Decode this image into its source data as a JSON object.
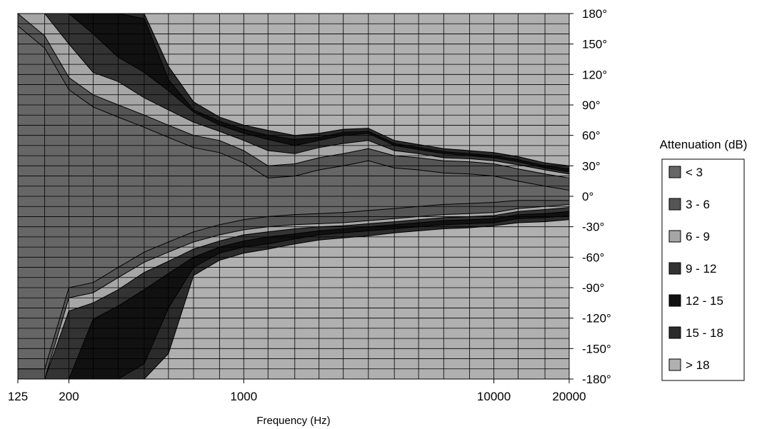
{
  "chart_data": {
    "type": "contour",
    "xlabel": "Frequency (Hz)",
    "x_scale": "log",
    "xlim": [
      125,
      20000
    ],
    "x_tick_labels": [
      {
        "value": 125,
        "label": "125"
      },
      {
        "value": 200,
        "label": "200"
      },
      {
        "value": 1000,
        "label": "1000"
      },
      {
        "value": 10000,
        "label": "10000"
      },
      {
        "value": 20000,
        "label": "20000"
      }
    ],
    "x_gridlines": [
      125,
      160,
      200,
      250,
      315,
      400,
      500,
      630,
      800,
      1000,
      1250,
      1600,
      2000,
      2500,
      3150,
      4000,
      5000,
      6300,
      8000,
      10000,
      12500,
      16000,
      20000
    ],
    "ylim": [
      -180,
      180
    ],
    "y_tick_labels": [
      {
        "value": 180,
        "label": "180°"
      },
      {
        "value": 150,
        "label": "150°"
      },
      {
        "value": 120,
        "label": "120°"
      },
      {
        "value": 90,
        "label": "90°"
      },
      {
        "value": 60,
        "label": "60°"
      },
      {
        "value": 30,
        "label": "30°"
      },
      {
        "value": 0,
        "label": "0°"
      },
      {
        "value": -30,
        "label": "-30°"
      },
      {
        "value": -60,
        "label": "-60°"
      },
      {
        "value": -90,
        "label": "-90°"
      },
      {
        "value": -120,
        "label": "-120°"
      },
      {
        "value": -150,
        "label": "-150°"
      },
      {
        "value": -180,
        "label": "-180°"
      }
    ],
    "y_grid_step": 10,
    "legend": {
      "title": "Attenuation (dB)",
      "position": "right",
      "entries": [
        {
          "label": "< 3",
          "color": "#666666"
        },
        {
          "label": "3 - 6",
          "color": "#555555"
        },
        {
          "label": "6 - 9",
          "color": "#a6a6a6"
        },
        {
          "label": "9 - 12",
          "color": "#333333"
        },
        {
          "label": "12 - 15",
          "color": "#111111"
        },
        {
          "label": "15 - 18",
          "color": "#2b2b2b"
        },
        {
          "label": "> 18",
          "color": "#b0b0b0"
        }
      ]
    },
    "band_boundaries": {
      "freq": [
        125,
        160,
        200,
        250,
        315,
        400,
        500,
        630,
        800,
        1000,
        1250,
        1600,
        2000,
        2500,
        3150,
        4000,
        5000,
        6300,
        8000,
        10000,
        12500,
        16000,
        20000
      ],
      "upper": [
        {
          "band": "3 - 6",
          "deg": [
            180,
            158,
            117,
            100,
            90,
            80,
            70,
            60,
            55,
            45,
            30,
            32,
            38,
            42,
            47,
            40,
            38,
            35,
            34,
            32,
            27,
            22,
            18
          ]
        },
        {
          "band": "6 - 9",
          "deg": [
            180,
            180,
            150,
            122,
            113,
            97,
            85,
            73,
            64,
            55,
            45,
            42,
            48,
            52,
            55,
            45,
            42,
            38,
            37,
            35,
            31,
            26,
            22
          ]
        },
        {
          "band": "9 - 12",
          "deg": [
            180,
            180,
            180,
            160,
            137,
            122,
            104,
            83,
            70,
            62,
            56,
            50,
            55,
            60,
            62,
            50,
            46,
            42,
            40,
            38,
            34,
            28,
            24
          ]
        },
        {
          "band": "12 - 15",
          "deg": [
            180,
            180,
            180,
            180,
            180,
            175,
            115,
            85,
            74,
            66,
            60,
            56,
            58,
            63,
            64,
            52,
            48,
            44,
            42,
            40,
            36,
            30,
            27
          ]
        },
        {
          "band": "15 - 18",
          "deg": [
            180,
            180,
            180,
            180,
            180,
            180,
            128,
            93,
            78,
            70,
            65,
            60,
            62,
            66,
            67,
            55,
            51,
            47,
            45,
            43,
            39,
            33,
            30
          ]
        }
      ],
      "lower": [
        {
          "band": "3 - 6",
          "deg": [
            -180,
            -180,
            -100,
            -95,
            -80,
            -65,
            -55,
            -45,
            -38,
            -33,
            -30,
            -28,
            -27,
            -26,
            -24,
            -22,
            -20,
            -18,
            -17,
            -16,
            -12,
            -10,
            -8
          ]
        },
        {
          "band": "6 - 9",
          "deg": [
            -180,
            -180,
            -113,
            -105,
            -92,
            -75,
            -64,
            -52,
            -44,
            -38,
            -35,
            -32,
            -30,
            -29,
            -27,
            -25,
            -23,
            -21,
            -20,
            -19,
            -15,
            -13,
            -11
          ]
        },
        {
          "band": "9 - 12",
          "deg": [
            -180,
            -180,
            -180,
            -121,
            -108,
            -92,
            -76,
            -60,
            -50,
            -44,
            -40,
            -37,
            -34,
            -32,
            -30,
            -28,
            -26,
            -24,
            -23,
            -22,
            -18,
            -17,
            -15
          ]
        },
        {
          "band": "12 - 15",
          "deg": [
            -180,
            -180,
            -180,
            -180,
            -180,
            -165,
            -110,
            -70,
            -56,
            -50,
            -47,
            -42,
            -38,
            -36,
            -34,
            -32,
            -30,
            -28,
            -27,
            -26,
            -22,
            -21,
            -19
          ]
        },
        {
          "band": "15 - 18",
          "deg": [
            -180,
            -180,
            -180,
            -180,
            -180,
            -180,
            -155,
            -78,
            -63,
            -56,
            -52,
            -47,
            -43,
            -41,
            -39,
            -36,
            -34,
            -32,
            -31,
            -29,
            -26,
            -25,
            -23
          ]
        }
      ]
    }
  }
}
